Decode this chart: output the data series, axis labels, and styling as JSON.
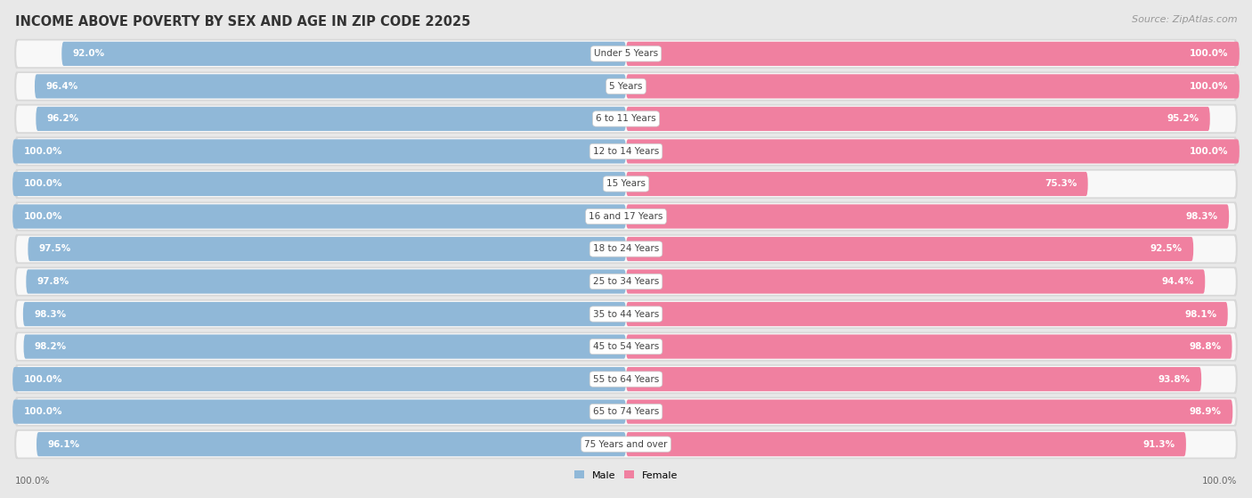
{
  "title": "INCOME ABOVE POVERTY BY SEX AND AGE IN ZIP CODE 22025",
  "source": "Source: ZipAtlas.com",
  "categories": [
    "Under 5 Years",
    "5 Years",
    "6 to 11 Years",
    "12 to 14 Years",
    "15 Years",
    "16 and 17 Years",
    "18 to 24 Years",
    "25 to 34 Years",
    "35 to 44 Years",
    "45 to 54 Years",
    "55 to 64 Years",
    "65 to 74 Years",
    "75 Years and over"
  ],
  "male_values": [
    92.0,
    96.4,
    96.2,
    100.0,
    100.0,
    100.0,
    97.5,
    97.8,
    98.3,
    98.2,
    100.0,
    100.0,
    96.1
  ],
  "female_values": [
    100.0,
    100.0,
    95.2,
    100.0,
    75.3,
    98.3,
    92.5,
    94.4,
    98.1,
    98.8,
    93.8,
    98.9,
    91.3
  ],
  "male_color": "#90b8d8",
  "female_color": "#f080a0",
  "male_label": "Male",
  "female_label": "Female",
  "bg_color": "#e8e8e8",
  "bar_bg_color": "#f0f0f0",
  "row_bg_color": "#d8d8d8",
  "title_fontsize": 10.5,
  "source_fontsize": 8,
  "label_fontsize": 7.5,
  "value_fontsize": 7.5,
  "bottom_label_100_left": "100.0%",
  "bottom_label_100_right": "100.0%"
}
